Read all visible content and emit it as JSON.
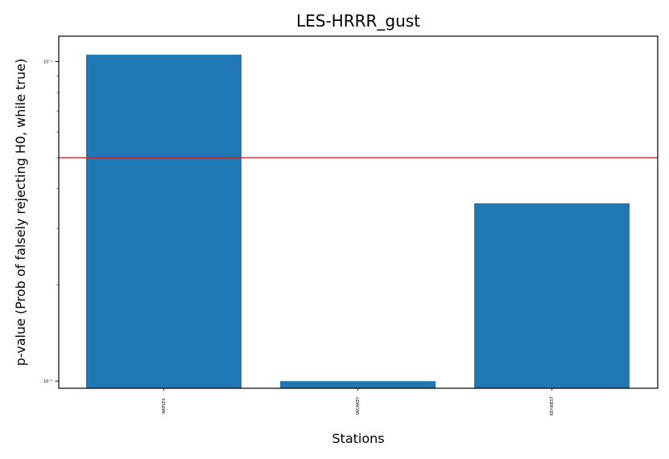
{
  "chart_data": {
    "type": "bar",
    "title": "LES-HRRR_gust",
    "xlabel": "Stations",
    "ylabel": "p-value (Prob of falsely rejecting H0, while true)",
    "categories": [
      "NAPLES",
      "VACAKEY",
      "KEYWEST"
    ],
    "values": [
      0.105,
      0.01,
      0.036
    ],
    "yscale": "log",
    "ylim": [
      0.0095,
      0.12
    ],
    "yticks": [
      {
        "value": 0.01,
        "label": "10⁻²"
      },
      {
        "value": 0.1,
        "label": "10⁻¹"
      }
    ],
    "reference_line": {
      "value": 0.05,
      "color": "#d62728"
    },
    "bar_color": "#1f77b4",
    "grid": false
  }
}
